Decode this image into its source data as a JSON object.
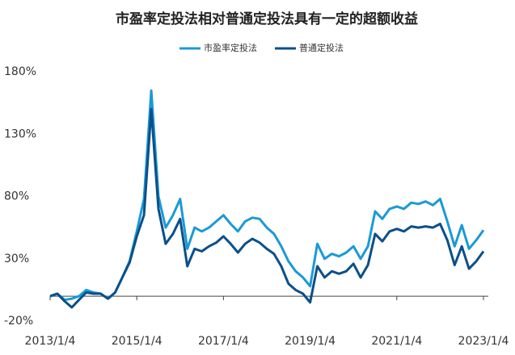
{
  "chart_data": {
    "type": "line",
    "title": "市盈率定投法相对普通定投法具有一定的超额收益",
    "categories": [
      "2013/1/4",
      null,
      null,
      null,
      null,
      null,
      null,
      null,
      null,
      null,
      null,
      null,
      "2015/1/4",
      null,
      null,
      null,
      null,
      null,
      null,
      null,
      null,
      null,
      null,
      null,
      "2017/1/4",
      null,
      null,
      null,
      null,
      null,
      null,
      null,
      null,
      null,
      null,
      null,
      "2019/1/4",
      null,
      null,
      null,
      null,
      null,
      null,
      null,
      null,
      null,
      null,
      null,
      "2021/1/4",
      null,
      null,
      null,
      null,
      null,
      null,
      null,
      null,
      null,
      null,
      null,
      "2023/1/4"
    ],
    "series": [
      {
        "name": "市盈率定投法",
        "color": "#1a9ad6",
        "values": [
          0,
          2,
          -3,
          -2,
          0,
          5,
          3,
          2,
          -2,
          3,
          15,
          28,
          52,
          78,
          165,
          80,
          55,
          65,
          78,
          38,
          55,
          52,
          55,
          60,
          65,
          58,
          52,
          60,
          63,
          62,
          55,
          50,
          40,
          28,
          20,
          15,
          8,
          42,
          30,
          34,
          32,
          35,
          40,
          30,
          40,
          68,
          62,
          70,
          72,
          70,
          75,
          74,
          76,
          73,
          78,
          60,
          40,
          57,
          38,
          45,
          53
        ]
      },
      {
        "name": "普通定投法",
        "color": "#0b4f8a",
        "values": [
          0,
          2,
          -4,
          -9,
          -3,
          3,
          2,
          2,
          -2,
          3,
          15,
          27,
          48,
          65,
          150,
          70,
          42,
          50,
          62,
          24,
          38,
          36,
          40,
          43,
          48,
          42,
          35,
          42,
          46,
          43,
          38,
          34,
          24,
          10,
          5,
          2,
          -5,
          24,
          15,
          20,
          18,
          20,
          26,
          15,
          25,
          50,
          44,
          52,
          54,
          52,
          56,
          55,
          56,
          55,
          58,
          45,
          25,
          40,
          22,
          28,
          36
        ]
      }
    ],
    "ylim": [
      -20,
      180
    ],
    "yticks": [
      {
        "value": -20,
        "label": "-20%"
      },
      {
        "value": 30,
        "label": "30%"
      },
      {
        "value": 80,
        "label": "80%"
      },
      {
        "value": 130,
        "label": "130%"
      },
      {
        "value": 180,
        "label": "180%"
      }
    ]
  }
}
